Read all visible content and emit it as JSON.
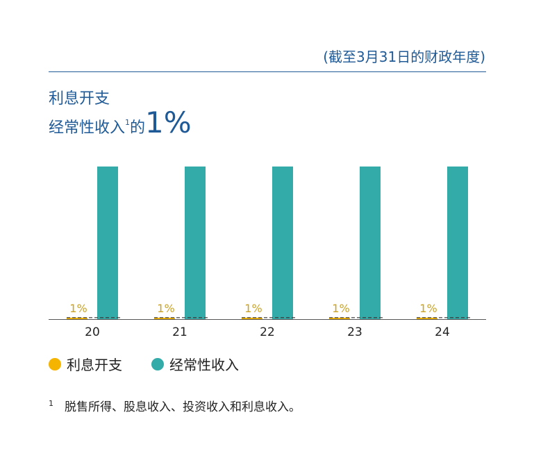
{
  "header": {
    "period_label": "(截至3月31日的财政年度)",
    "title_line1": "利息开支",
    "title_line2_text": "经常性收入",
    "title_line2_sup": "1",
    "title_line2_suffix": "的",
    "title_line2_big": "1%"
  },
  "chart_data": {
    "type": "bar",
    "categories": [
      "20",
      "21",
      "22",
      "23",
      "24"
    ],
    "series": [
      {
        "name": "利息开支",
        "values": [
          1,
          1,
          1,
          1,
          1
        ],
        "color": "#f5b400",
        "data_labels": [
          "1%",
          "1%",
          "1%",
          "1%",
          "1%"
        ]
      },
      {
        "name": "经常性收入",
        "values": [
          100,
          100,
          100,
          100,
          100
        ],
        "color": "#33aba8"
      }
    ],
    "reference_line": {
      "style": "dashed",
      "color": "#333333"
    },
    "ylim": [
      0,
      100
    ],
    "grid": false,
    "legend_placement": "bottom-left"
  },
  "legend": [
    {
      "label": "利息开支",
      "color": "#f5b400"
    },
    {
      "label": "经常性收入",
      "color": "#33aba8"
    }
  ],
  "footnote": {
    "mark": "1",
    "text": "脱售所得、股息收入、投资收入和利息收入。"
  }
}
